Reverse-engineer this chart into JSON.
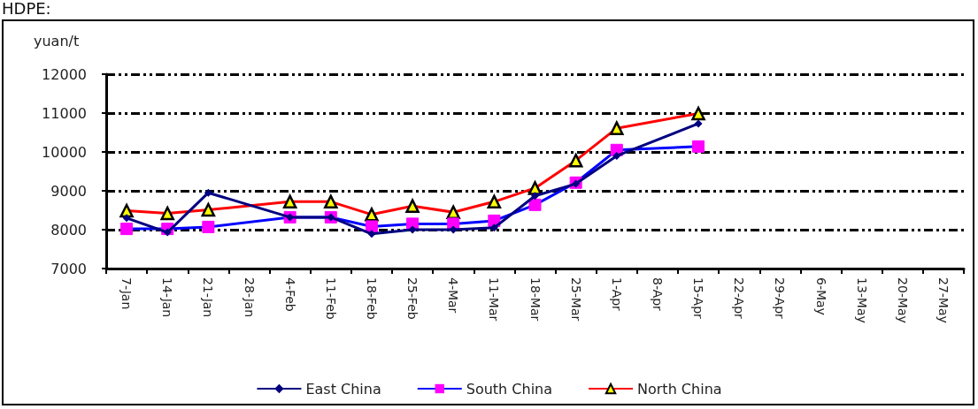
{
  "chart_data": {
    "type": "line",
    "title": "HDPE:",
    "ylabel": "yuan/t",
    "categories": [
      "7-Jan",
      "14-Jan",
      "21-Jan",
      "28-Jan",
      "4-Feb",
      "11-Feb",
      "18-Feb",
      "25-Feb",
      "4-Mar",
      "11-Mar",
      "18-Mar",
      "25-Mar",
      "1-Apr",
      "8-Apr",
      "15-Apr",
      "22-Apr",
      "29-Apr",
      "6-May",
      "13-May",
      "20-May",
      "27-May"
    ],
    "series": [
      {
        "name": "East China",
        "color": "#000080",
        "marker": "diamond",
        "values": [
          8300,
          7930,
          8950,
          null,
          8320,
          8320,
          7890,
          8000,
          8000,
          8050,
          8870,
          9180,
          9900,
          null,
          10730,
          null,
          null,
          null,
          null,
          null,
          null
        ]
      },
      {
        "name": "South China",
        "color": "#0000ff",
        "marker": "square",
        "values": [
          8020,
          8020,
          8070,
          null,
          8320,
          8320,
          8080,
          8150,
          8150,
          8230,
          8640,
          9210,
          10050,
          null,
          10140,
          null,
          null,
          null,
          null,
          null,
          null
        ]
      },
      {
        "name": "North China",
        "color": "#ff0000",
        "marker": "triangle",
        "values": [
          8490,
          8420,
          8510,
          null,
          8720,
          8720,
          8390,
          8610,
          8450,
          8720,
          9070,
          9780,
          10610,
          null,
          10990,
          null,
          null,
          null,
          null,
          null,
          null
        ]
      }
    ],
    "ylim": [
      7000,
      12000
    ],
    "yticks": [
      7000,
      8000,
      9000,
      10000,
      11000,
      12000
    ],
    "grid": "y",
    "legend": "bottom"
  }
}
